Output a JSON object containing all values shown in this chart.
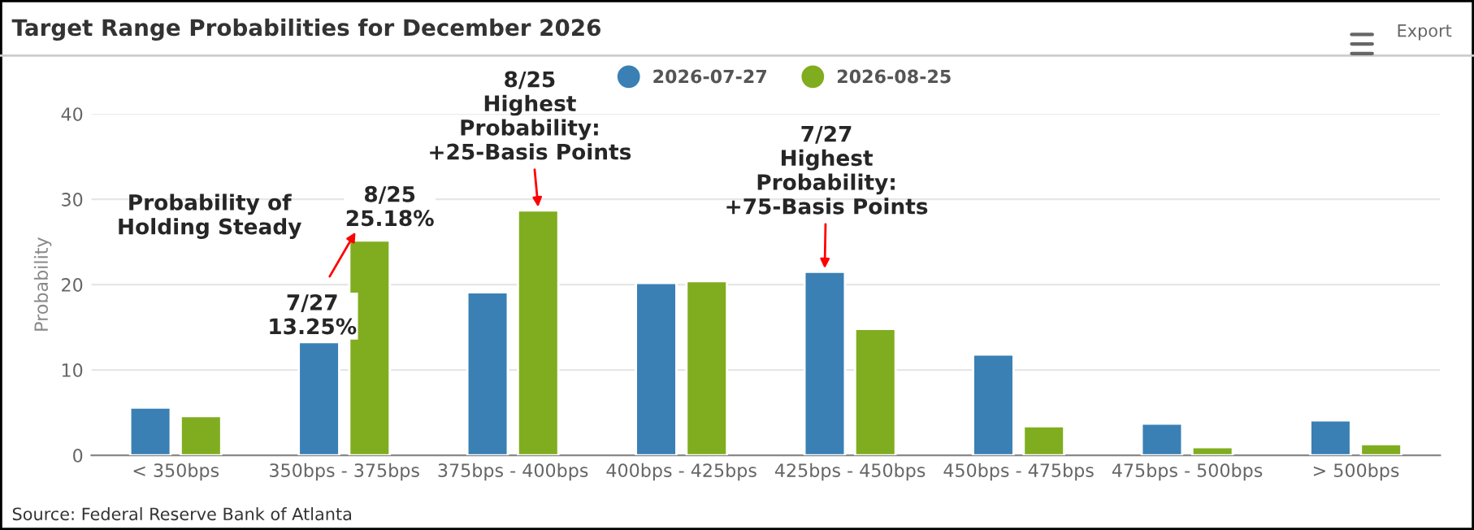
{
  "chart_data": {
    "type": "bar",
    "title": "Target Range Probabilities for December 2026",
    "ylabel": "Probability",
    "categories": [
      "< 350bps",
      "350bps - 375bps",
      "375bps - 400bps",
      "400bps - 425bps",
      "425bps - 450bps",
      "450bps - 475bps",
      "475bps - 500bps",
      "> 500bps"
    ],
    "series": [
      {
        "name": "2026-07-27",
        "color": "#3a80b4",
        "values": [
          5.6,
          13.25,
          19.1,
          20.2,
          21.5,
          11.8,
          3.7,
          4.1
        ]
      },
      {
        "name": "2026-08-25",
        "color": "#80ad1f",
        "values": [
          4.6,
          25.18,
          28.7,
          20.4,
          14.8,
          3.4,
          0.95,
          1.3
        ]
      }
    ],
    "ylim": [
      0,
      40
    ],
    "yticks": [
      0,
      10,
      20,
      30,
      40
    ],
    "grid": "y",
    "legend": "top",
    "annotations": [
      "Probability of\nHolding Steady",
      {
        "text": "7/27\n13.25%",
        "x": "350bps - 375bps",
        "y": 13.25
      },
      {
        "text": "8/25\n25.18%",
        "x": "350bps - 375bps",
        "y": 25.18
      },
      {
        "text": "8/25\nHighest\nProbability:\n+25-Basis Points",
        "x": "375bps - 400bps",
        "y": 28.7
      },
      {
        "text": "7/27\nHighest\nProbability:\n+75-Basis Points",
        "x": "425bps - 450bps",
        "y": 21.5
      },
      "Source: Federal Reserve Bank of Atlanta",
      "Export"
    ]
  }
}
